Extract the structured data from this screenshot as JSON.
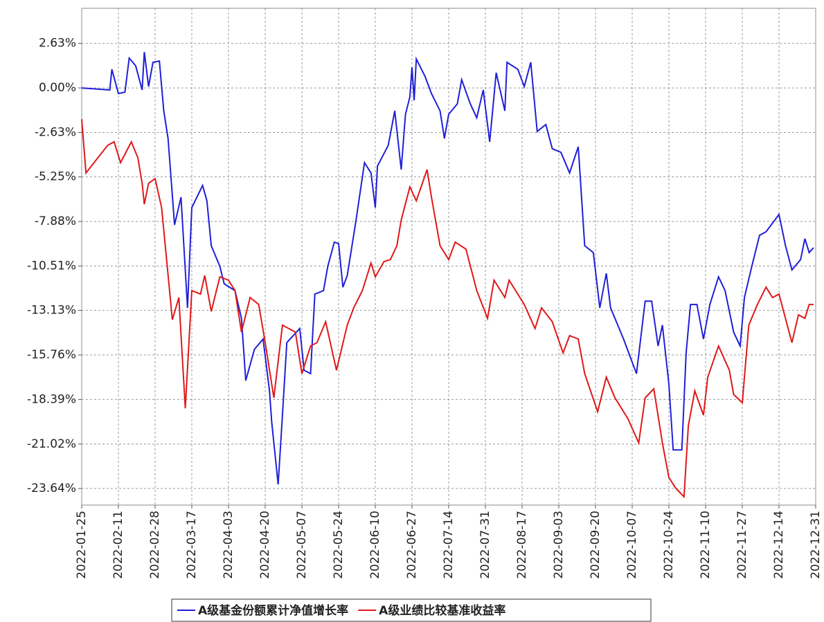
{
  "chart_data": {
    "type": "line",
    "xlim": [
      "2022-01-25",
      "2022-12-31"
    ],
    "xticks": [
      "2022-01-25",
      "2022-02-11",
      "2022-02-28",
      "2022-03-17",
      "2022-04-03",
      "2022-04-20",
      "2022-05-07",
      "2022-05-24",
      "2022-06-10",
      "2022-06-27",
      "2022-07-14",
      "2022-07-31",
      "2022-08-17",
      "2022-09-03",
      "2022-09-20",
      "2022-10-07",
      "2022-10-24",
      "2022-11-10",
      "2022-11-27",
      "2022-12-14",
      "2022-12-31"
    ],
    "ylim": [
      -24.62,
      4.7
    ],
    "yticks": [
      {
        "value": 2.63,
        "label": "2.63%"
      },
      {
        "value": 0,
        "label": "0.00%"
      },
      {
        "value": -2.63,
        "label": "-2.63%"
      },
      {
        "value": -5.25,
        "label": "-5.25%"
      },
      {
        "value": -7.88,
        "label": "-7.88%"
      },
      {
        "value": -10.51,
        "label": "-10.51%"
      },
      {
        "value": -13.13,
        "label": "-13.13%"
      },
      {
        "value": -15.76,
        "label": "-15.76%"
      },
      {
        "value": -18.39,
        "label": "-18.39%"
      },
      {
        "value": -21.02,
        "label": "-21.02%"
      },
      {
        "value": -23.64,
        "label": "-23.64%"
      }
    ],
    "grid": true,
    "series": [
      {
        "name": "A级基金份额累计净值增长率",
        "color": "#1f1fd8",
        "x": [
          "2022-01-25",
          "2022-02-07",
          "2022-02-08",
          "2022-02-11",
          "2022-02-14",
          "2022-02-16",
          "2022-02-19",
          "2022-02-22",
          "2022-02-23",
          "2022-02-25",
          "2022-02-27",
          "2022-03-02",
          "2022-03-04",
          "2022-03-06",
          "2022-03-09",
          "2022-03-12",
          "2022-03-15",
          "2022-03-17",
          "2022-03-22",
          "2022-03-24",
          "2022-03-26",
          "2022-03-30",
          "2022-04-01",
          "2022-04-06",
          "2022-04-09",
          "2022-04-11",
          "2022-04-15",
          "2022-04-19",
          "2022-04-22",
          "2022-04-23",
          "2022-04-26",
          "2022-04-28",
          "2022-04-30",
          "2022-05-06",
          "2022-05-08",
          "2022-05-11",
          "2022-05-13",
          "2022-05-17",
          "2022-05-19",
          "2022-05-22",
          "2022-05-24",
          "2022-05-26",
          "2022-05-28",
          "2022-06-01",
          "2022-06-05",
          "2022-06-08",
          "2022-06-10",
          "2022-06-11",
          "2022-06-16",
          "2022-06-19",
          "2022-06-22",
          "2022-06-24",
          "2022-06-26",
          "2022-06-27",
          "2022-06-28",
          "2022-06-29",
          "2022-07-03",
          "2022-07-06",
          "2022-07-10",
          "2022-07-12",
          "2022-07-14",
          "2022-07-18",
          "2022-07-20",
          "2022-07-24",
          "2022-07-27",
          "2022-07-30",
          "2022-08-02",
          "2022-08-05",
          "2022-08-09",
          "2022-08-10",
          "2022-08-15",
          "2022-08-18",
          "2022-08-21",
          "2022-08-24",
          "2022-08-28",
          "2022-08-31",
          "2022-09-04",
          "2022-09-08",
          "2022-09-12",
          "2022-09-15",
          "2022-09-19",
          "2022-09-22",
          "2022-09-25",
          "2022-09-27",
          "2022-10-03",
          "2022-10-09",
          "2022-10-13",
          "2022-10-16",
          "2022-10-19",
          "2022-10-21",
          "2022-10-24",
          "2022-10-26",
          "2022-10-30",
          "2022-11-01",
          "2022-11-03",
          "2022-11-06",
          "2022-11-09",
          "2022-11-12",
          "2022-11-16",
          "2022-11-19",
          "2022-11-23",
          "2022-11-26",
          "2022-11-28",
          "2022-12-01",
          "2022-12-05",
          "2022-12-08",
          "2022-12-14",
          "2022-12-17",
          "2022-12-20",
          "2022-12-24",
          "2022-12-26",
          "2022-12-28",
          "2022-12-30"
        ],
        "values": [
          0,
          -0.12,
          1.1,
          -0.33,
          -0.25,
          1.76,
          1.31,
          -0.12,
          2.12,
          0.08,
          1.51,
          1.59,
          -1.35,
          -2.98,
          -8.08,
          -6.45,
          -12.98,
          -7.06,
          -5.76,
          -6.66,
          -9.31,
          -10.53,
          -11.56,
          -11.96,
          -13.6,
          -17.27,
          -15.43,
          -14.82,
          -17.88,
          -19.72,
          -23.4,
          -19.31,
          -15.03,
          -14.2,
          -16.66,
          -16.86,
          -12.17,
          -11.96,
          -10.53,
          -9.1,
          -9.19,
          -11.76,
          -11.07,
          -7.88,
          -4.41,
          -5.02,
          -7.06,
          -4.61,
          -3.39,
          -1.35,
          -4.82,
          -1.55,
          -0.53,
          1.22,
          -0.73,
          1.71,
          0.69,
          -0.33,
          -1.35,
          -2.98,
          -1.55,
          -0.94,
          0.49,
          -0.94,
          -1.76,
          -0.12,
          -3.18,
          0.9,
          -1.35,
          1.51,
          1.1,
          0.08,
          1.51,
          -2.57,
          -2.16,
          -3.59,
          -3.8,
          -5.02,
          -3.47,
          -9.31,
          -9.72,
          -12.98,
          -10.94,
          -12.98,
          -14.82,
          -16.86,
          -12.58,
          -12.58,
          -15.23,
          -14.0,
          -17.48,
          -21.36,
          -21.36,
          -15.64,
          -12.78,
          -12.78,
          -14.82,
          -12.78,
          -11.15,
          -11.96,
          -14.41,
          -15.23,
          -12.37,
          -10.74,
          -8.7,
          -8.49,
          -7.47,
          -9.31,
          -10.74,
          -10.13,
          -8.9,
          -9.72,
          -9.43
        ]
      },
      {
        "name": "A级业绩比较基准收益率",
        "color": "#e01818",
        "x": [
          "2022-01-25",
          "2022-01-27",
          "2022-02-06",
          "2022-02-09",
          "2022-02-12",
          "2022-02-17",
          "2022-02-20",
          "2022-02-22",
          "2022-02-23",
          "2022-02-25",
          "2022-02-28",
          "2022-03-03",
          "2022-03-08",
          "2022-03-11",
          "2022-03-14",
          "2022-03-17",
          "2022-03-21",
          "2022-03-23",
          "2022-03-26",
          "2022-03-30",
          "2022-04-03",
          "2022-04-06",
          "2022-04-09",
          "2022-04-13",
          "2022-04-17",
          "2022-04-20",
          "2022-04-24",
          "2022-04-28",
          "2022-05-04",
          "2022-05-07",
          "2022-05-11",
          "2022-05-14",
          "2022-05-18",
          "2022-05-23",
          "2022-05-28",
          "2022-05-31",
          "2022-06-04",
          "2022-06-08",
          "2022-06-10",
          "2022-06-14",
          "2022-06-17",
          "2022-06-20",
          "2022-06-22",
          "2022-06-26",
          "2022-06-29",
          "2022-07-04",
          "2022-07-06",
          "2022-07-10",
          "2022-07-14",
          "2022-07-17",
          "2022-07-22",
          "2022-07-27",
          "2022-08-01",
          "2022-08-04",
          "2022-08-09",
          "2022-08-11",
          "2022-08-15",
          "2022-08-18",
          "2022-08-23",
          "2022-08-26",
          "2022-08-31",
          "2022-09-05",
          "2022-09-08",
          "2022-09-12",
          "2022-09-15",
          "2022-09-21",
          "2022-09-25",
          "2022-09-29",
          "2022-10-05",
          "2022-10-10",
          "2022-10-13",
          "2022-10-17",
          "2022-10-21",
          "2022-10-24",
          "2022-10-27",
          "2022-10-31",
          "2022-11-02",
          "2022-11-05",
          "2022-11-09",
          "2022-11-11",
          "2022-11-16",
          "2022-11-21",
          "2022-11-23",
          "2022-11-27",
          "2022-11-30",
          "2022-12-04",
          "2022-12-08",
          "2022-12-11",
          "2022-12-14",
          "2022-12-20",
          "2022-12-23",
          "2022-12-26",
          "2022-12-28",
          "2022-12-30"
        ],
        "values": [
          -1.84,
          -5.02,
          -3.39,
          -3.18,
          -4.41,
          -3.18,
          -4.12,
          -5.63,
          -6.86,
          -5.63,
          -5.35,
          -7.06,
          -13.68,
          -12.37,
          -18.91,
          -11.96,
          -12.17,
          -11.07,
          -13.19,
          -11.15,
          -11.35,
          -11.96,
          -14.41,
          -12.37,
          -12.78,
          -15.03,
          -18.29,
          -14.0,
          -14.41,
          -16.86,
          -15.23,
          -15.03,
          -13.8,
          -16.66,
          -14.0,
          -12.98,
          -11.96,
          -10.33,
          -11.15,
          -10.25,
          -10.13,
          -9.31,
          -7.8,
          -5.84,
          -6.66,
          -4.82,
          -6.45,
          -9.31,
          -10.13,
          -9.1,
          -9.51,
          -11.96,
          -13.6,
          -11.35,
          -12.37,
          -11.35,
          -12.17,
          -12.78,
          -14.2,
          -12.98,
          -13.8,
          -15.64,
          -14.62,
          -14.82,
          -16.86,
          -19.11,
          -17.07,
          -18.29,
          -19.52,
          -20.95,
          -18.29,
          -17.76,
          -20.95,
          -22.99,
          -23.6,
          -24.13,
          -19.93,
          -17.88,
          -19.31,
          -17.07,
          -15.23,
          -16.66,
          -18.09,
          -18.58,
          -14.0,
          -12.78,
          -11.76,
          -12.37,
          -12.17,
          -15.03,
          -13.39,
          -13.6,
          -12.78,
          -12.78
        ]
      }
    ]
  }
}
